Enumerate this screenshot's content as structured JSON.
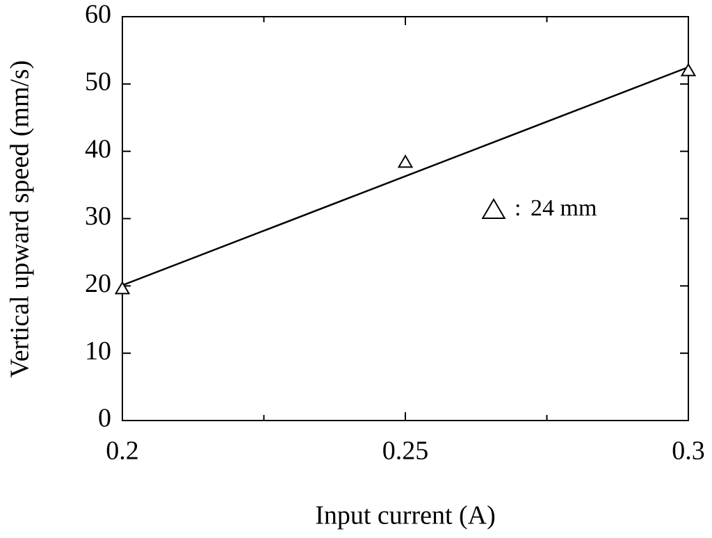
{
  "chart_data": {
    "type": "scatter",
    "xlabel": "Input current (A)",
    "ylabel": "Vertical upward speed  (mm/s)",
    "xlim": [
      0.2,
      0.3
    ],
    "xticks": [
      0.2,
      0.25,
      0.3
    ],
    "xminorticks": [
      0.225,
      0.275
    ],
    "ylim": [
      0,
      60
    ],
    "yticks": [
      0,
      10,
      20,
      30,
      40,
      50,
      60
    ],
    "series": [
      {
        "name": "24 mm",
        "color": "#000000",
        "marker": "triangle",
        "x": [
          0.2,
          0.25,
          0.3
        ],
        "values": [
          19.6,
          38.4,
          52.0
        ]
      }
    ],
    "fit": {
      "color": "#000000",
      "x": [
        0.2,
        0.3
      ],
      "values": [
        20.1,
        52.5
      ]
    },
    "legend_separator": ":"
  }
}
